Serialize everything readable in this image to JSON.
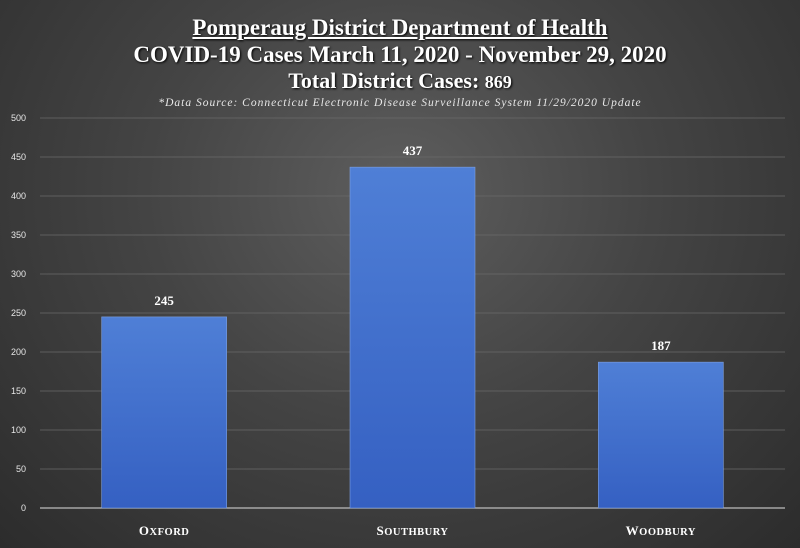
{
  "header": {
    "title": "Pomperaug District Department of Health",
    "subtitle": "COVID-19 Cases March 11, 2020 - November 29, 2020",
    "total_label": "Total District Cases:",
    "total_value": "869",
    "source_note": "*Data Source: Connecticut Electronic Disease Surveillance System 11/29/2020 Update"
  },
  "chart_data": {
    "type": "bar",
    "title": "Pomperaug District Department of Health",
    "categories": [
      "Oxford",
      "Southbury",
      "Woodbury"
    ],
    "values": [
      245,
      437,
      187
    ],
    "ylim": [
      0,
      500
    ],
    "yticks": [
      0,
      50,
      100,
      150,
      200,
      250,
      300,
      350,
      400,
      450,
      500
    ],
    "grid": true,
    "bar_color": "#4f7fd6",
    "bar_color_dark": "#3560c2"
  }
}
